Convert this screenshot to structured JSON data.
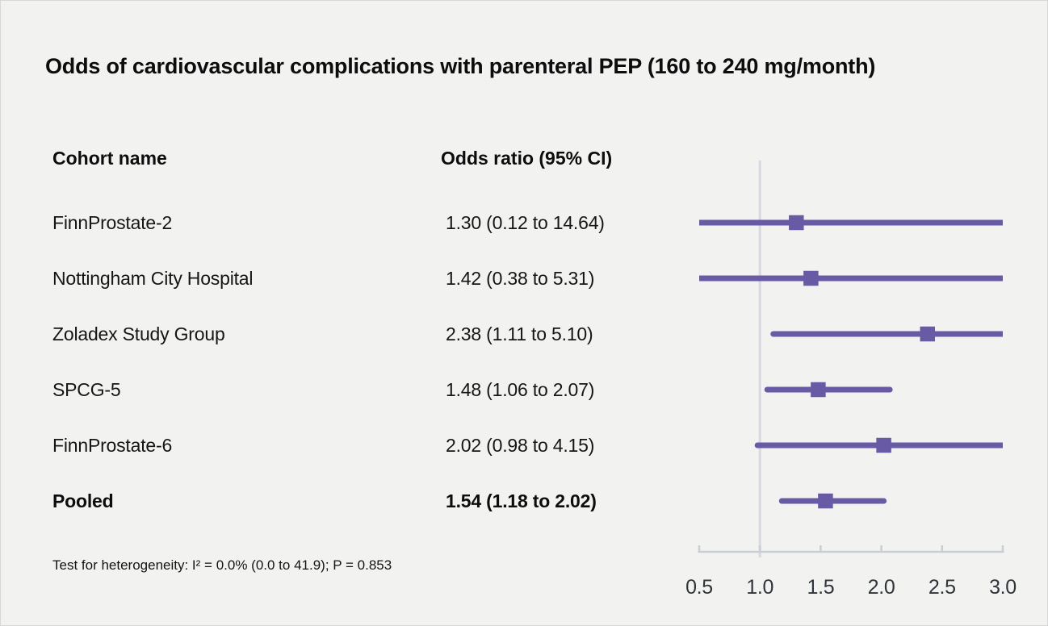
{
  "title": "Odds of cardiovascular complications with parenteral PEP (160 to 240 mg/month)",
  "table": {
    "col1_header": "Cohort name",
    "col2_header": "Odds ratio (95% CI)"
  },
  "footnote": "Test for heterogeneity: I² = 0.0% (0.0 to 41.9); P = 0.853",
  "colors": {
    "background": "#f2f2f0",
    "marker": "#695aa6",
    "reference_line": "#d6d9e2",
    "axis": "#c9cdd5",
    "axis_label": "#30353b",
    "text": "#111111"
  },
  "chart_data": {
    "type": "forest",
    "title": "Odds of cardiovascular complications with parenteral PEP (160 to 240 mg/month)",
    "xlabel": "Odds ratio",
    "xmin": 0.5,
    "xmax": 3.0,
    "reference_value": 1.0,
    "x_ticks": [
      0.5,
      1.0,
      1.5,
      2.0,
      2.5,
      3.0
    ],
    "tick_labels": [
      "0.5",
      "1.0",
      "1.5",
      "2.0",
      "2.5",
      "3.0"
    ],
    "rows": [
      {
        "name": "FinnProstate-2",
        "label": "1.30 (0.12 to 14.64)",
        "or": 1.3,
        "lo": 0.12,
        "hi": 14.64,
        "pooled": false
      },
      {
        "name": "Nottingham City Hospital",
        "label": "1.42 (0.38 to 5.31)",
        "or": 1.42,
        "lo": 0.38,
        "hi": 5.31,
        "pooled": false
      },
      {
        "name": "Zoladex Study Group",
        "label": "2.38 (1.11 to 5.10)",
        "or": 2.38,
        "lo": 1.11,
        "hi": 5.1,
        "pooled": false
      },
      {
        "name": "SPCG-5",
        "label": "1.48 (1.06 to 2.07)",
        "or": 1.48,
        "lo": 1.06,
        "hi": 2.07,
        "pooled": false
      },
      {
        "name": "FinnProstate-6",
        "label": "2.02 (0.98 to 4.15)",
        "or": 2.02,
        "lo": 0.98,
        "hi": 4.15,
        "pooled": false
      },
      {
        "name": "Pooled",
        "label": "1.54 (1.18 to 2.02)",
        "or": 1.54,
        "lo": 1.18,
        "hi": 2.02,
        "pooled": true
      }
    ],
    "footnote": "Test for heterogeneity: I² = 0.0% (0.0 to 41.9); P = 0.853",
    "legend": "none",
    "grid": false
  }
}
